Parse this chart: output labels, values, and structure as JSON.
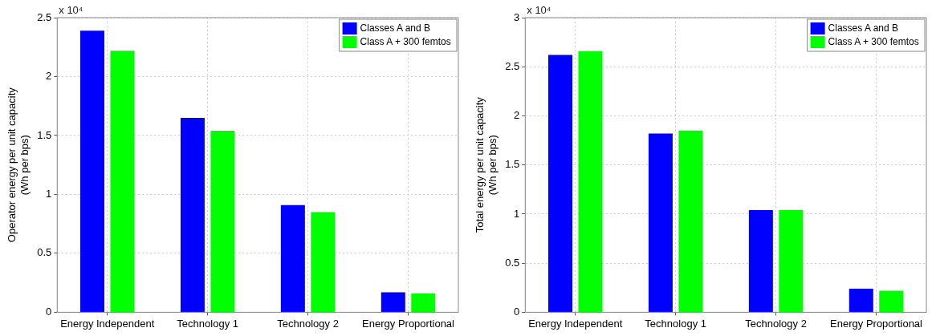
{
  "chart_data": [
    {
      "type": "bar",
      "ylabel": "Operator energy per unit capacity\n(Wh per bps)",
      "categories": [
        "Energy Independent",
        "Technology 1",
        "Technology 2",
        "Energy Proportional"
      ],
      "series": [
        {
          "name": "Classes A and B",
          "color": "#0000ff",
          "values": [
            2.39,
            1.65,
            0.91,
            0.17
          ]
        },
        {
          "name": "Class A + 300 femtos",
          "color": "#00ff00",
          "values": [
            2.22,
            1.54,
            0.85,
            0.16
          ]
        }
      ],
      "ylim": [
        0,
        2.5
      ],
      "yticks": [
        0,
        0.5,
        1,
        1.5,
        2,
        2.5
      ],
      "grid": true,
      "legend": "top right",
      "annotations": [
        "x 10⁴"
      ]
    },
    {
      "type": "bar",
      "ylabel": "Total energy per unit capacity\n(Wh per bps)",
      "categories": [
        "Energy Independent",
        "Technology 1",
        "Technology 2",
        "Energy Proportional"
      ],
      "series": [
        {
          "name": "Classes A and B",
          "color": "#0000ff",
          "values": [
            2.62,
            1.82,
            1.04,
            0.24
          ]
        },
        {
          "name": "Class A + 300 femtos",
          "color": "#00ff00",
          "values": [
            2.66,
            1.85,
            1.04,
            0.22
          ]
        }
      ],
      "ylim": [
        0,
        3
      ],
      "yticks": [
        0,
        0.5,
        1,
        1.5,
        2,
        2.5,
        3
      ],
      "grid": true,
      "legend": "top right",
      "annotations": [
        "x 10⁴"
      ]
    }
  ]
}
